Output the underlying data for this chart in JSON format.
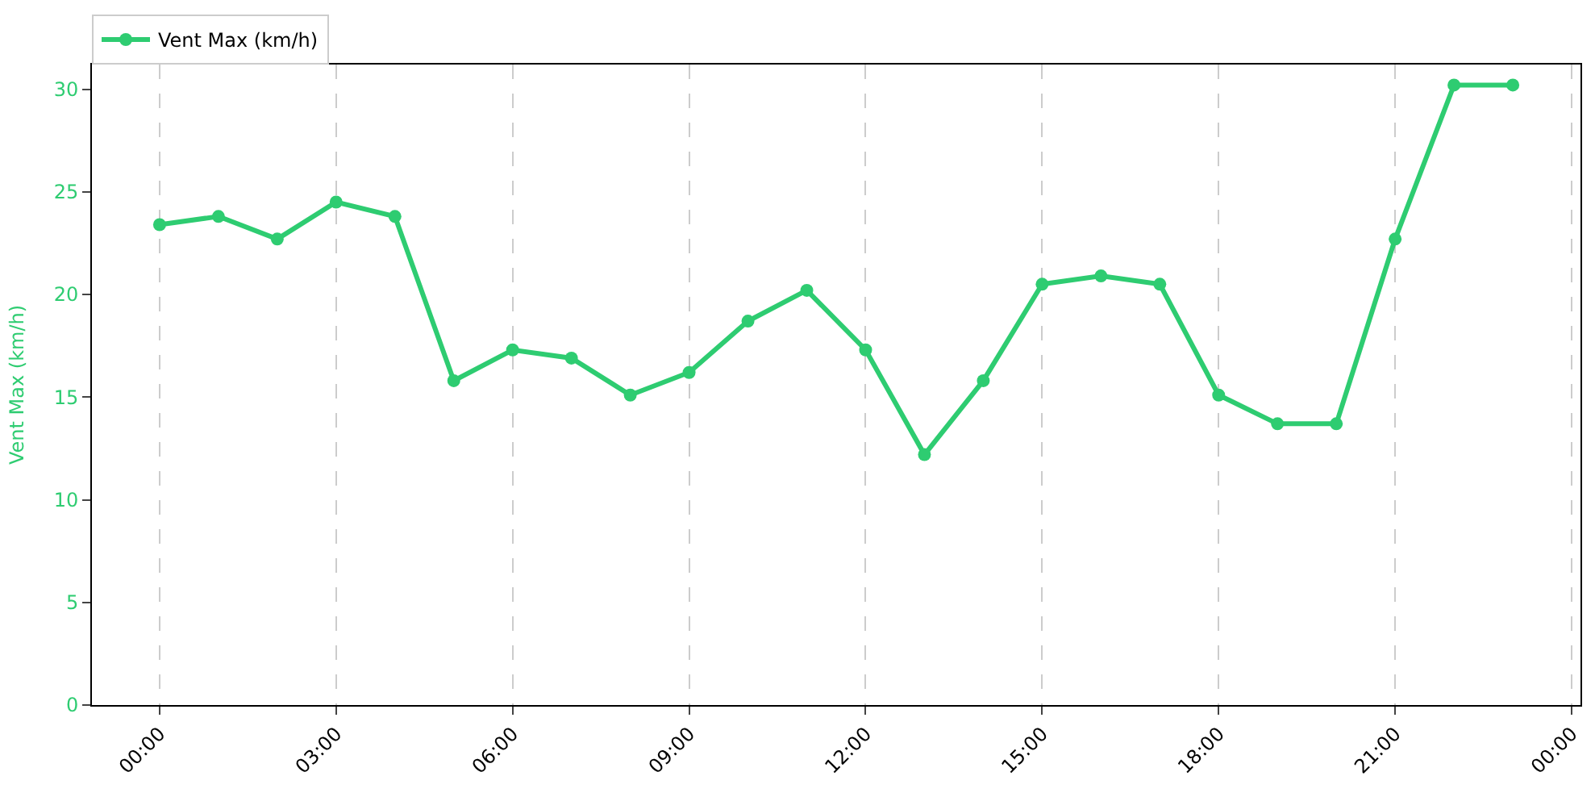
{
  "chart_data": {
    "type": "line",
    "ylabel": "Vent Max (km/h)",
    "x": [
      0,
      1,
      2,
      3,
      4,
      5,
      6,
      7,
      8,
      9,
      10,
      11,
      12,
      13,
      14,
      15,
      16,
      17,
      18,
      19,
      20,
      21,
      22,
      23
    ],
    "series": [
      {
        "name": "Vent Max (km/h)",
        "color": "#2ecc71",
        "values": [
          23.4,
          23.8,
          22.7,
          24.5,
          23.8,
          15.8,
          17.3,
          16.9,
          15.1,
          16.2,
          18.7,
          20.2,
          17.3,
          12.2,
          15.8,
          20.5,
          20.9,
          20.5,
          15.1,
          13.7,
          13.7,
          22.7,
          30.2,
          30.2
        ]
      }
    ],
    "xlim": [
      -1.15,
      24.15
    ],
    "xticks": [
      {
        "value": 0,
        "label": "00:00"
      },
      {
        "value": 3,
        "label": "03:00"
      },
      {
        "value": 6,
        "label": "06:00"
      },
      {
        "value": 9,
        "label": "09:00"
      },
      {
        "value": 12,
        "label": "12:00"
      },
      {
        "value": 15,
        "label": "15:00"
      },
      {
        "value": 18,
        "label": "18:00"
      },
      {
        "value": 21,
        "label": "21:00"
      },
      {
        "value": 24,
        "label": "00:00"
      }
    ],
    "ylim": [
      0,
      31.2
    ],
    "yticks": [
      0,
      5,
      10,
      15,
      20,
      25,
      30
    ],
    "grid": "x",
    "legend": "top left",
    "marker": "circle",
    "line_style": "solid"
  }
}
